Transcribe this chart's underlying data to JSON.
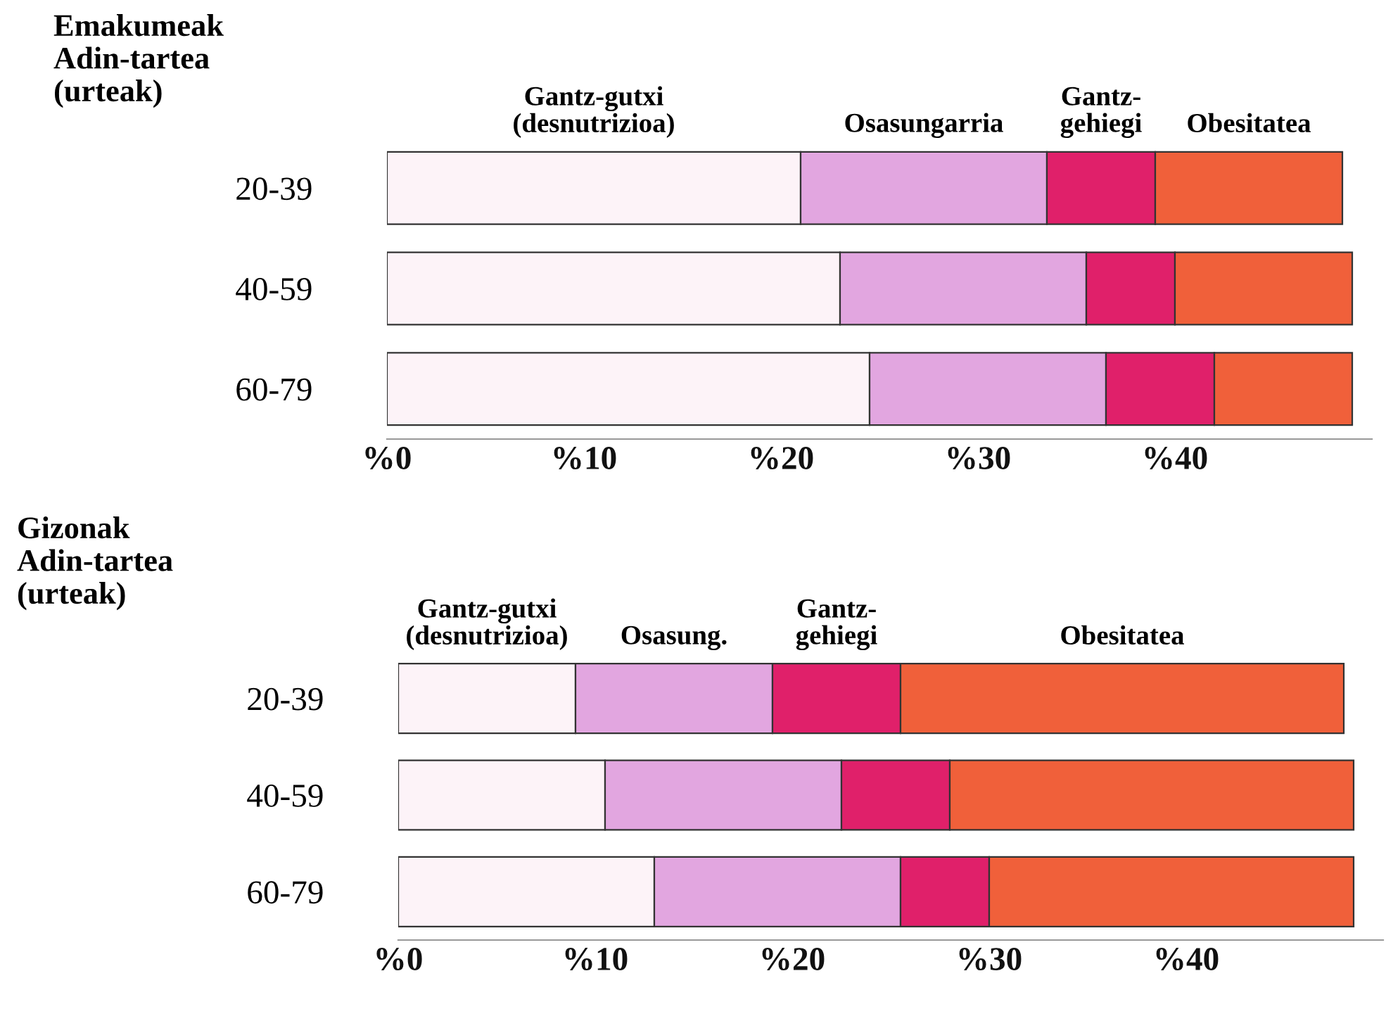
{
  "chart_data": [
    {
      "type": "bar",
      "orientation": "horizontal",
      "stacked": true,
      "title": "Emakumeak\nAdin-tartea\n(urteak)",
      "categories": [
        "20-39",
        "40-59",
        "60-79"
      ],
      "series": [
        {
          "name": "Gantz-gutxi\n(desnutrizioa)",
          "color": "#fdf3f8",
          "values": [
            21,
            23,
            24.5
          ]
        },
        {
          "name": "Osasungarria",
          "color": "#e2a6e0",
          "values": [
            12.5,
            12.5,
            12
          ]
        },
        {
          "name": "Gantz-\ngehiegi",
          "color": "#e0206a",
          "values": [
            5.5,
            4.5,
            5.5
          ]
        },
        {
          "name": "Obesitatea",
          "color": "#f0603a",
          "values": [
            9.5,
            9,
            7
          ]
        }
      ],
      "xlim": [
        0,
        50
      ],
      "xticks": [
        {
          "value": 0,
          "label": "%0"
        },
        {
          "value": 10,
          "label": "%10"
        },
        {
          "value": 20,
          "label": "%20"
        },
        {
          "value": 30,
          "label": "%30"
        },
        {
          "value": 40,
          "label": "%40"
        }
      ],
      "legend": false,
      "grid": false
    },
    {
      "type": "bar",
      "orientation": "horizontal",
      "stacked": true,
      "title": "Gizonak\nAdin-tartea\n(urteak)",
      "categories": [
        "20-39",
        "40-59",
        "60-79"
      ],
      "series": [
        {
          "name": "Gantz-gutxi\n(desnutrizioa)",
          "color": "#fdf3f8",
          "values": [
            9,
            10.5,
            13
          ]
        },
        {
          "name": "Osasung.",
          "color": "#e2a6e0",
          "values": [
            10,
            12,
            12.5
          ]
        },
        {
          "name": "Gantz-\ngehiegi",
          "color": "#e0206a",
          "values": [
            6.5,
            5.5,
            4.5
          ]
        },
        {
          "name": "Obesitatea",
          "color": "#f0603a",
          "values": [
            22.5,
            20.5,
            18.5
          ]
        }
      ],
      "xlim": [
        0,
        50
      ],
      "xticks": [
        {
          "value": 0,
          "label": "%0"
        },
        {
          "value": 10,
          "label": "%10"
        },
        {
          "value": 20,
          "label": "%20"
        },
        {
          "value": 30,
          "label": "%30"
        },
        {
          "value": 40,
          "label": "%40"
        }
      ],
      "legend": false,
      "grid": false
    }
  ]
}
